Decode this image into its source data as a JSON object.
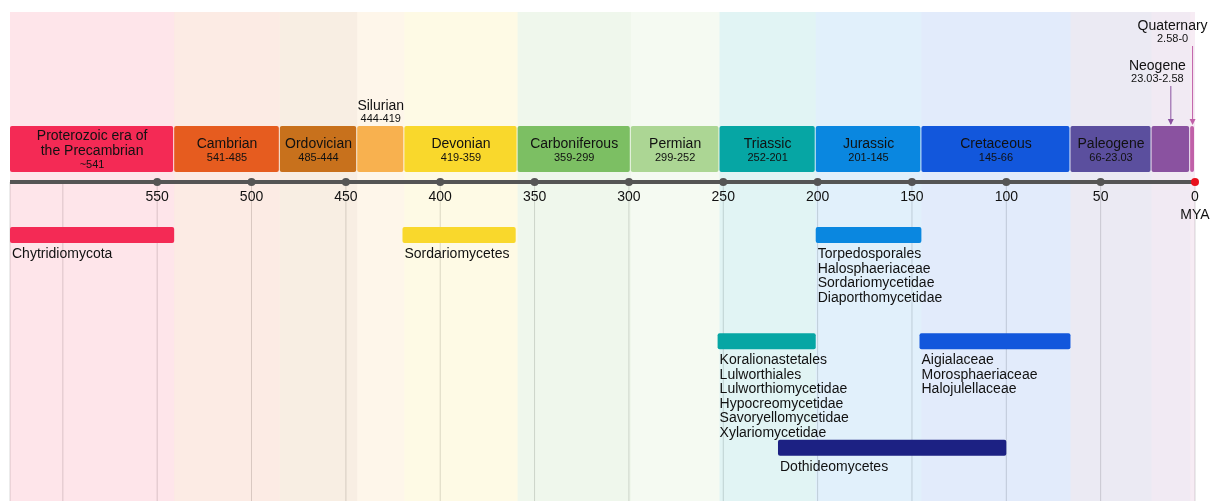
{
  "chart_data": {
    "type": "bar",
    "orientation": "horizontal",
    "categories": [
      null,
      null,
      null
    ],
    "xlim": [
      628,
      0
    ],
    "xticks": [
      {
        "value": 600,
        "label": null
      },
      550,
      500,
      450,
      400,
      350,
      300,
      250,
      200,
      150,
      100,
      50,
      0
    ],
    "xlabel": "MYA",
    "grid": "x",
    "legend": false,
    "tick_labels": "x",
    "series": [
      {
        "name": "Chytridiomycota",
        "color": "#f42a55",
        "values": [
          87,
          null,
          null
        ],
        "base": [
          541,
          null,
          null
        ]
      },
      {
        "name": "Sordariomycetes",
        "color": "#f9d82c",
        "values": [
          60,
          null,
          null
        ],
        "base": [
          360,
          null,
          null
        ]
      },
      {
        "name": "Torpedosporales\nHalosphaeriaceae\nSordariomycetidae\nDiaporthomycetidae",
        "color": "#0a87e0",
        "values": [
          56,
          null,
          null
        ],
        "base": [
          145,
          null,
          null
        ]
      },
      {
        "name": "Koralionastetales\nLulworthiales\nLulworthiomycetidae\nHypocreomycetidae\nSavoryellomycetidae\nXylariomycetidae",
        "color": "#06a6a4",
        "values": [
          null,
          52,
          null
        ],
        "base": [
          null,
          201,
          null
        ]
      },
      {
        "name": "Aigialaceae\nMorosphaeriaceae\nHalojulellaceae",
        "color": "#1257dc",
        "values": [
          null,
          80,
          null
        ],
        "base": [
          null,
          66,
          null
        ]
      },
      {
        "name": "Dothideomycetes",
        "color": "#1c2183",
        "values": [
          null,
          null,
          121
        ],
        "base": [
          null,
          null,
          100
        ]
      }
    ],
    "bands": [
      {
        "axis": "x",
        "from": 628,
        "to": 541,
        "label": "Proterozoic era of the Precambrian",
        "color": "#f42a55"
      },
      {
        "axis": "x",
        "from": 541,
        "to": 485,
        "label": "Cambrian",
        "color": "#e65c1f"
      },
      {
        "axis": "x",
        "from": 485,
        "to": 444,
        "label": "Ordovician",
        "color": "#c8711c"
      },
      {
        "axis": "x",
        "from": 444,
        "to": 419,
        "label": "Silurian",
        "color": "#f8b14f"
      },
      {
        "axis": "x",
        "from": 419,
        "to": 359,
        "label": "Devonian",
        "color": "#f9d82c"
      },
      {
        "axis": "x",
        "from": 359,
        "to": 299,
        "label": "Carboniferous",
        "color": "#7cbf63"
      },
      {
        "axis": "x",
        "from": 299,
        "to": 252,
        "label": "Permian",
        "color": "#acd694"
      },
      {
        "axis": "x",
        "from": 252,
        "to": 201,
        "label": "Triassic",
        "color": "#06a6a4"
      },
      {
        "axis": "x",
        "from": 201,
        "to": 145,
        "label": "Jurassic",
        "color": "#0a87e0"
      },
      {
        "axis": "x",
        "from": 145,
        "to": 66,
        "label": "Cretaceous",
        "color": "#1257dc"
      },
      {
        "axis": "x",
        "from": 66,
        "to": 23.03,
        "label": "Paleogene",
        "color": "#5b4f9e"
      },
      {
        "axis": "x",
        "from": 23.03,
        "to": 2.58,
        "label": "Neogene",
        "color": "#8a52a0"
      },
      {
        "axis": "x",
        "from": 2.58,
        "to": 0,
        "label": "Quaternary",
        "color": "#c060a8"
      }
    ],
    "annotations": [
      "~541",
      "541-485",
      "485-444",
      "444-419",
      "419-359",
      "359-299",
      "299-252",
      "252-201",
      "201-145",
      "145-66",
      "66-23.03",
      "23.03-2.58",
      "2.58-0"
    ]
  }
}
